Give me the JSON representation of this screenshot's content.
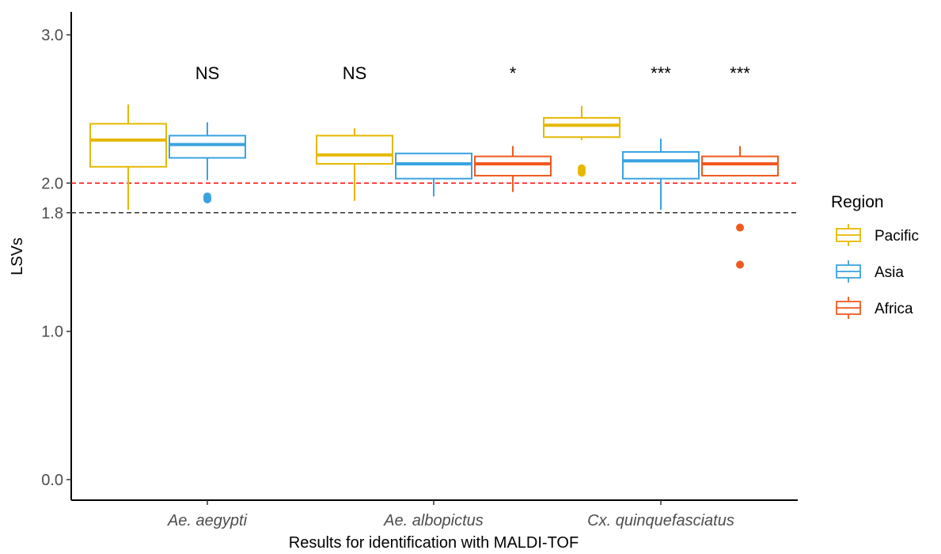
{
  "chart_data": {
    "type": "boxplot",
    "xlabel": "Results for identification with MALDI-TOF",
    "ylabel": "LSVs",
    "ylim": [
      -0.12,
      3.08
    ],
    "yticks": [
      0.0,
      1.0,
      1.8,
      2.0,
      3.0
    ],
    "ytick_labels": [
      "0.0",
      "1.0",
      "1.8",
      "2.0",
      "3.0"
    ],
    "categories": [
      "Ae. aegypti",
      "Ae. albopictus",
      "Cx. quinquefasciatus"
    ],
    "legend": {
      "title": "Region",
      "position": "right"
    },
    "reference_lines": [
      {
        "value": 2.0,
        "color": "#ff0000",
        "style": "dashed"
      },
      {
        "value": 1.8,
        "color": "#333333",
        "style": "dashed"
      }
    ],
    "series": [
      {
        "name": "Pacific",
        "color": "#e6b800",
        "boxes": [
          {
            "whisker_low": 1.82,
            "q1": 2.11,
            "median": 2.29,
            "q3": 2.4,
            "whisker_high": 2.53,
            "outliers": []
          },
          {
            "whisker_low": 1.88,
            "q1": 2.13,
            "median": 2.19,
            "q3": 2.32,
            "whisker_high": 2.37,
            "outliers": []
          },
          {
            "whisker_low": 2.29,
            "q1": 2.31,
            "median": 2.39,
            "q3": 2.44,
            "whisker_high": 2.52,
            "outliers": [
              2.07,
              2.08,
              2.09,
              2.1
            ]
          }
        ]
      },
      {
        "name": "Asia",
        "color": "#3aa3e0",
        "boxes": [
          {
            "whisker_low": 2.02,
            "q1": 2.17,
            "median": 2.26,
            "q3": 2.32,
            "whisker_high": 2.41,
            "outliers": [
              1.89,
              1.9,
              1.91
            ]
          },
          {
            "whisker_low": 1.91,
            "q1": 2.03,
            "median": 2.13,
            "q3": 2.2,
            "whisker_high": 2.2,
            "outliers": []
          },
          {
            "whisker_low": 1.82,
            "q1": 2.03,
            "median": 2.15,
            "q3": 2.21,
            "whisker_high": 2.3,
            "outliers": []
          }
        ]
      },
      {
        "name": "Africa",
        "color": "#f05a1e",
        "boxes": null
      }
    ],
    "africa_boxes": [
      null,
      {
        "whisker_low": 1.94,
        "q1": 2.05,
        "median": 2.13,
        "q3": 2.18,
        "whisker_high": 2.25,
        "outliers": []
      },
      {
        "whisker_low": 2.05,
        "q1": 2.05,
        "median": 2.13,
        "q3": 2.18,
        "whisker_high": 2.25,
        "outliers": [
          1.7,
          1.45
        ]
      }
    ],
    "annotations": [
      {
        "category": 0,
        "group": 1,
        "text": "NS"
      },
      {
        "category": 1,
        "group": 0,
        "text": "NS"
      },
      {
        "category": 1,
        "group": 2,
        "text": "*"
      },
      {
        "category": 2,
        "group": 1,
        "text": "***"
      },
      {
        "category": 2,
        "group": 2,
        "text": "***"
      }
    ]
  }
}
